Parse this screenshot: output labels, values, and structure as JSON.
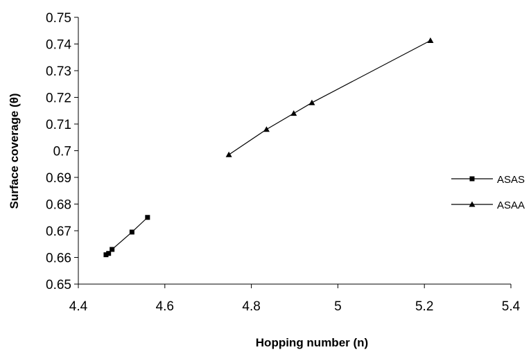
{
  "chart_data": {
    "type": "scatter",
    "title": "",
    "xlabel": "Hopping number (n)",
    "ylabel": "Surface coverage (θ)",
    "xlim": [
      4.4,
      5.4
    ],
    "ylim": [
      0.65,
      0.75
    ],
    "x_ticks": [
      "4.4",
      "4.6",
      "4.8",
      "5",
      "5.2",
      "5.4"
    ],
    "y_ticks": [
      "0.65",
      "0.66",
      "0.67",
      "0.68",
      "0.69",
      "0.7",
      "0.71",
      "0.72",
      "0.73",
      "0.74",
      "0.75"
    ],
    "grid": false,
    "legend_position": "right",
    "series": [
      {
        "name": "ASAS",
        "marker": "square",
        "color": "#000000",
        "x": [
          4.464,
          4.47,
          4.478,
          4.524,
          4.56
        ],
        "y": [
          0.661,
          0.6615,
          0.663,
          0.6695,
          0.675
        ]
      },
      {
        "name": "ASAA",
        "marker": "triangle",
        "color": "#000000",
        "x": [
          4.748,
          4.835,
          4.898,
          4.94,
          5.214
        ],
        "y": [
          0.6985,
          0.708,
          0.714,
          0.718,
          0.7413
        ]
      }
    ]
  }
}
